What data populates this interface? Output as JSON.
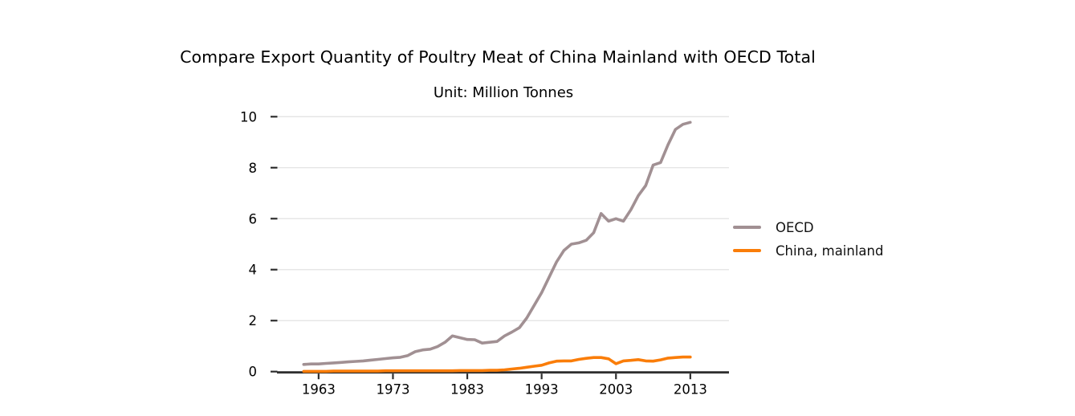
{
  "page": {
    "background": "#ffffff"
  },
  "chart_data": {
    "type": "line",
    "title": "Compare Export Quantity of Poultry Meat of China Mainland with OECD Total",
    "subtitle": "Unit: Million Tonnes",
    "xlabel": "",
    "ylabel": "",
    "grid": "horizontal-light",
    "legend_position": "right-outside",
    "xlim": [
      1957.4,
      2018.2
    ],
    "ylim": [
      0,
      10
    ],
    "x_ticks": [
      1963,
      1973,
      1983,
      1993,
      2003,
      2013
    ],
    "y_ticks": [
      0,
      2,
      4,
      6,
      8,
      10
    ],
    "x": [
      1961,
      1962,
      1963,
      1964,
      1965,
      1966,
      1967,
      1968,
      1969,
      1970,
      1971,
      1972,
      1973,
      1974,
      1975,
      1976,
      1977,
      1978,
      1979,
      1980,
      1981,
      1982,
      1983,
      1984,
      1985,
      1986,
      1987,
      1988,
      1989,
      1990,
      1991,
      1992,
      1993,
      1994,
      1995,
      1996,
      1997,
      1998,
      1999,
      2000,
      2001,
      2002,
      2003,
      2004,
      2005,
      2006,
      2007,
      2008,
      2009,
      2010,
      2011,
      2012,
      2013
    ],
    "series": [
      {
        "name": "OECD",
        "color": "#a19093",
        "values": [
          0.28,
          0.3,
          0.3,
          0.32,
          0.34,
          0.36,
          0.38,
          0.4,
          0.42,
          0.45,
          0.48,
          0.51,
          0.54,
          0.56,
          0.63,
          0.78,
          0.85,
          0.88,
          0.98,
          1.15,
          1.4,
          1.33,
          1.26,
          1.25,
          1.12,
          1.15,
          1.18,
          1.4,
          1.55,
          1.72,
          2.1,
          2.6,
          3.1,
          3.7,
          4.3,
          4.75,
          5.0,
          5.05,
          5.15,
          5.45,
          6.2,
          5.9,
          6.0,
          5.9,
          6.35,
          6.9,
          7.3,
          8.1,
          8.2,
          8.9,
          9.5,
          9.7,
          9.78
        ]
      },
      {
        "name": "China, mainland",
        "color": "#fa7d09",
        "values": [
          0.01,
          0.01,
          0.01,
          0.01,
          0.02,
          0.02,
          0.02,
          0.02,
          0.02,
          0.02,
          0.02,
          0.03,
          0.03,
          0.03,
          0.03,
          0.03,
          0.03,
          0.03,
          0.03,
          0.03,
          0.03,
          0.04,
          0.04,
          0.04,
          0.04,
          0.05,
          0.05,
          0.07,
          0.1,
          0.13,
          0.17,
          0.21,
          0.25,
          0.34,
          0.41,
          0.42,
          0.42,
          0.48,
          0.52,
          0.55,
          0.55,
          0.5,
          0.31,
          0.42,
          0.44,
          0.47,
          0.42,
          0.41,
          0.46,
          0.53,
          0.55,
          0.57,
          0.57
        ]
      }
    ],
    "colors": {
      "gridline": "#e3e3e3",
      "axis": "#2e2e2e",
      "tick_label": "#000000"
    }
  }
}
